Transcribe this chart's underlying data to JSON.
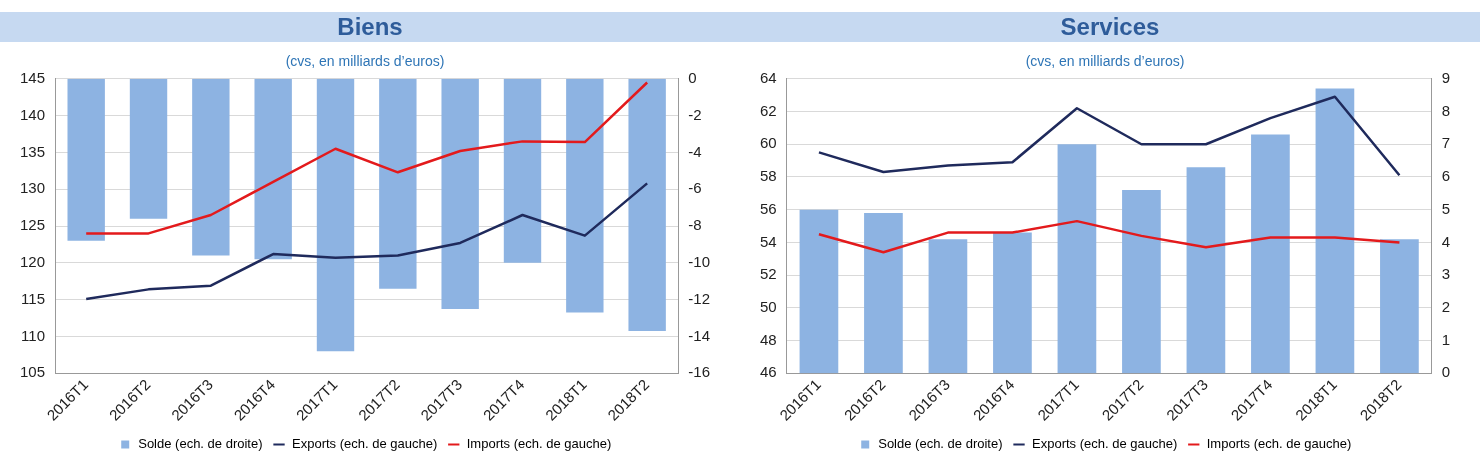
{
  "chart_data": [
    {
      "type": "bar",
      "title": "Biens",
      "subtitle": "(cvs, en milliards d’euros)",
      "categories": [
        "2016T1",
        "2016T2",
        "2016T3",
        "2016T4",
        "2017T1",
        "2017T2",
        "2017T3",
        "2017T4",
        "2018T1",
        "2018T2"
      ],
      "series": [
        {
          "name": "Solde (ech. de droite)",
          "axis": "y2",
          "color": "#8db3e2",
          "values": [
            -8.8,
            -7.6,
            -9.6,
            -9.8,
            -14.8,
            -11.4,
            -12.5,
            -10.0,
            -12.7,
            -13.7
          ]
        },
        {
          "name": "Exports (ech. de gauche)",
          "type": "line",
          "color": "#1f2a5c",
          "values": [
            115.1,
            116.4,
            116.9,
            121.2,
            120.7,
            121.0,
            122.7,
            126.5,
            123.7,
            130.8
          ]
        },
        {
          "name": "Imports (ech. de gauche)",
          "type": "line",
          "color": "#e31a1c",
          "values": [
            124.0,
            124.0,
            126.5,
            131.0,
            135.5,
            132.3,
            135.2,
            136.5,
            136.4,
            144.5
          ]
        }
      ],
      "ylim": [
        105,
        145
      ],
      "yticks": [
        105,
        110,
        115,
        120,
        125,
        130,
        135,
        140,
        145
      ],
      "y2lim": [
        -16,
        0
      ],
      "y2ticks": [
        -16,
        -14,
        -12,
        -10,
        -8,
        -6,
        -4,
        -2,
        0
      ],
      "grid": "y",
      "legend": "bottom",
      "marker": "none",
      "line_style": "solid"
    },
    {
      "type": "bar",
      "title": "Services",
      "subtitle": "(cvs, en milliards d’euros)",
      "categories": [
        "2016T1",
        "2016T2",
        "2016T3",
        "2016T4",
        "2017T1",
        "2017T2",
        "2017T3",
        "2017T4",
        "2018T1",
        "2018T2"
      ],
      "series": [
        {
          "name": "Solde (ech. de droite)",
          "axis": "y2",
          "color": "#8db3e2",
          "values": [
            5.0,
            4.9,
            4.1,
            4.3,
            7.0,
            5.6,
            6.3,
            7.3,
            8.7,
            4.1
          ]
        },
        {
          "name": "Exports (ech. de gauche)",
          "type": "line",
          "color": "#1f2a5c",
          "values": [
            59.5,
            58.3,
            58.7,
            58.9,
            62.2,
            60.0,
            60.0,
            61.6,
            62.9,
            58.1
          ]
        },
        {
          "name": "Imports (ech. de gauche)",
          "type": "line",
          "color": "#e31a1c",
          "values": [
            54.5,
            53.4,
            54.6,
            54.6,
            55.3,
            54.4,
            53.7,
            54.3,
            54.3,
            54.0
          ]
        }
      ],
      "ylim": [
        46,
        64
      ],
      "yticks": [
        46,
        48,
        50,
        52,
        54,
        56,
        58,
        60,
        62,
        64
      ],
      "y2lim": [
        0,
        9
      ],
      "y2ticks": [
        0,
        1,
        2,
        3,
        4,
        5,
        6,
        7,
        8,
        9
      ],
      "grid": "y",
      "legend": "bottom",
      "marker": "none",
      "line_style": "solid"
    }
  ]
}
